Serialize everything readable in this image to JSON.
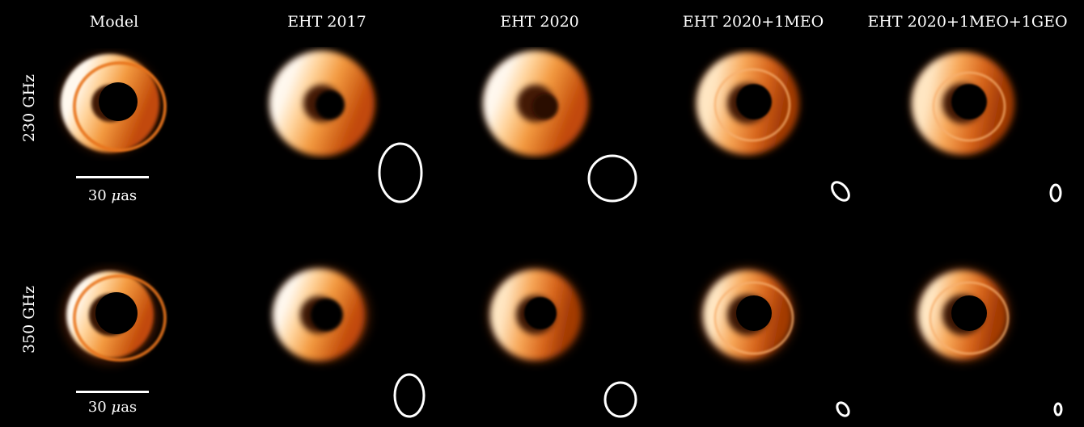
{
  "columns": [
    "Model",
    "EHT 2017",
    "EHT 2020",
    "EHT 2020+1MEO",
    "EHT 2020+1MEO+1GEO"
  ],
  "rows": [
    "230 GHz",
    "350 GHz"
  ],
  "scale_bar": {
    "value": "30",
    "unit_symbol": "μ",
    "unit_rest": "as"
  },
  "colors": {
    "background": "#000000",
    "ring_bright": "#fff6e8",
    "ring_mid": "#f3a04a",
    "ring_outer": "#b23c00",
    "beam": "#ffffff"
  }
}
